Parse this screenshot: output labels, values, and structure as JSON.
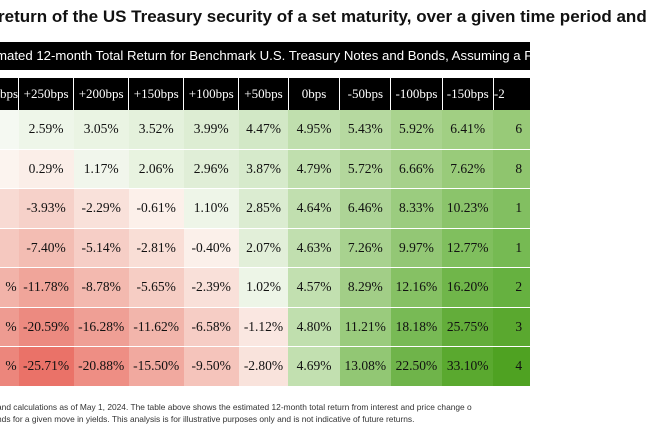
{
  "title": "return of the US Treasury security of a set maturity, over a given time period and",
  "subtitle": "mated 12-month Total Return for Benchmark U.S. Treasury Notes and Bonds, Assuming a Paralle",
  "chart_data": {
    "type": "table",
    "columns": [
      "bps",
      "+250bps",
      "+200bps",
      "+150bps",
      "+100bps",
      "+50bps",
      "0bps",
      "-50bps",
      "-100bps",
      "-150bps",
      "-2"
    ],
    "rows": [
      {
        "label": "",
        "values": [
          "2.59%",
          "3.05%",
          "3.52%",
          "3.99%",
          "4.47%",
          "4.95%",
          "5.43%",
          "5.92%",
          "6.41%",
          "6"
        ]
      },
      {
        "label": "",
        "values": [
          "0.29%",
          "1.17%",
          "2.06%",
          "2.96%",
          "3.87%",
          "4.79%",
          "5.72%",
          "6.66%",
          "7.62%",
          "8"
        ]
      },
      {
        "label": "",
        "values": [
          "-3.93%",
          "-2.29%",
          "-0.61%",
          "1.10%",
          "2.85%",
          "4.64%",
          "6.46%",
          "8.33%",
          "10.23%",
          "1"
        ]
      },
      {
        "label": "",
        "values": [
          "-7.40%",
          "-5.14%",
          "-2.81%",
          "-0.40%",
          "2.07%",
          "4.63%",
          "7.26%",
          "9.97%",
          "12.77%",
          "1"
        ]
      },
      {
        "label": "%",
        "values": [
          "-11.78%",
          "-8.78%",
          "-5.65%",
          "-2.39%",
          "1.02%",
          "4.57%",
          "8.29%",
          "12.16%",
          "16.20%",
          "2"
        ]
      },
      {
        "label": "%",
        "values": [
          "-20.59%",
          "-16.28%",
          "-11.62%",
          "-6.58%",
          "-1.12%",
          "4.80%",
          "11.21%",
          "18.18%",
          "25.75%",
          "3"
        ]
      },
      {
        "label": "%",
        "values": [
          "-25.71%",
          "-20.88%",
          "-15.50%",
          "-9.50%",
          "-2.80%",
          "4.69%",
          "13.08%",
          "22.50%",
          "33.10%",
          "4"
        ]
      }
    ],
    "row_colors": [
      [
        "#eef6e9",
        "#eaf4e3",
        "#e4f1dc",
        "#ddedd3",
        "#d2e8c6",
        "#c0dfae",
        "#b6d9a0",
        "#a9d38e",
        "#a1cf83",
        "#98ca78"
      ],
      [
        "#fbeee8",
        "#f1f6ec",
        "#e8f3e0",
        "#e0eed7",
        "#d6eacb",
        "#c0dfae",
        "#b3d79c",
        "#a6d18b",
        "#99cb7a",
        "#8fc56e"
      ],
      [
        "#f6d1c9",
        "#f9e1da",
        "#fcf0ea",
        "#eef5e8",
        "#dbecd1",
        "#c1dfaf",
        "#add496",
        "#9bcc7f",
        "#8bc46b",
        "#82bf61"
      ],
      [
        "#f3bdb3",
        "#f6cec6",
        "#f9ded6",
        "#fbf0ea",
        "#e2efd9",
        "#c1dfaf",
        "#a8d28f",
        "#93c775",
        "#80bf5e",
        "#76ba53"
      ],
      [
        "#f0a59a",
        "#f3b9af",
        "#f6cdc4",
        "#f9e0d9",
        "#edf5e7",
        "#c2e0b0",
        "#a2ce87",
        "#86c164",
        "#70b64a",
        "#66b140"
      ],
      [
        "#ec8a80",
        "#ef9f95",
        "#f2b5ab",
        "#f6cdc5",
        "#fae7e1",
        "#c0dfae",
        "#9acb7d",
        "#78ba55",
        "#63ad3a",
        "#5aa82f"
      ],
      [
        "#ea7268",
        "#ee8e84",
        "#f1a99f",
        "#f5c4bb",
        "#f9e3dc",
        "#c2e0b0",
        "#92c774",
        "#6fb44a",
        "#5aa92f",
        "#4fa222"
      ]
    ],
    "label_colors": [
      "#f5f9f2",
      "#fcf4ef",
      "#f8dad3",
      "#f5c8bf",
      "#f2b3a9",
      "#ee9b91",
      "#ec867c"
    ]
  },
  "footnote_lines": [
    "and calculations as of May 1, 2024. The table above shows the estimated 12-month total return from interest and price change o",
    "nds for a given move in yields. This analysis is for illustrative purposes only and is not indicative of future returns."
  ]
}
